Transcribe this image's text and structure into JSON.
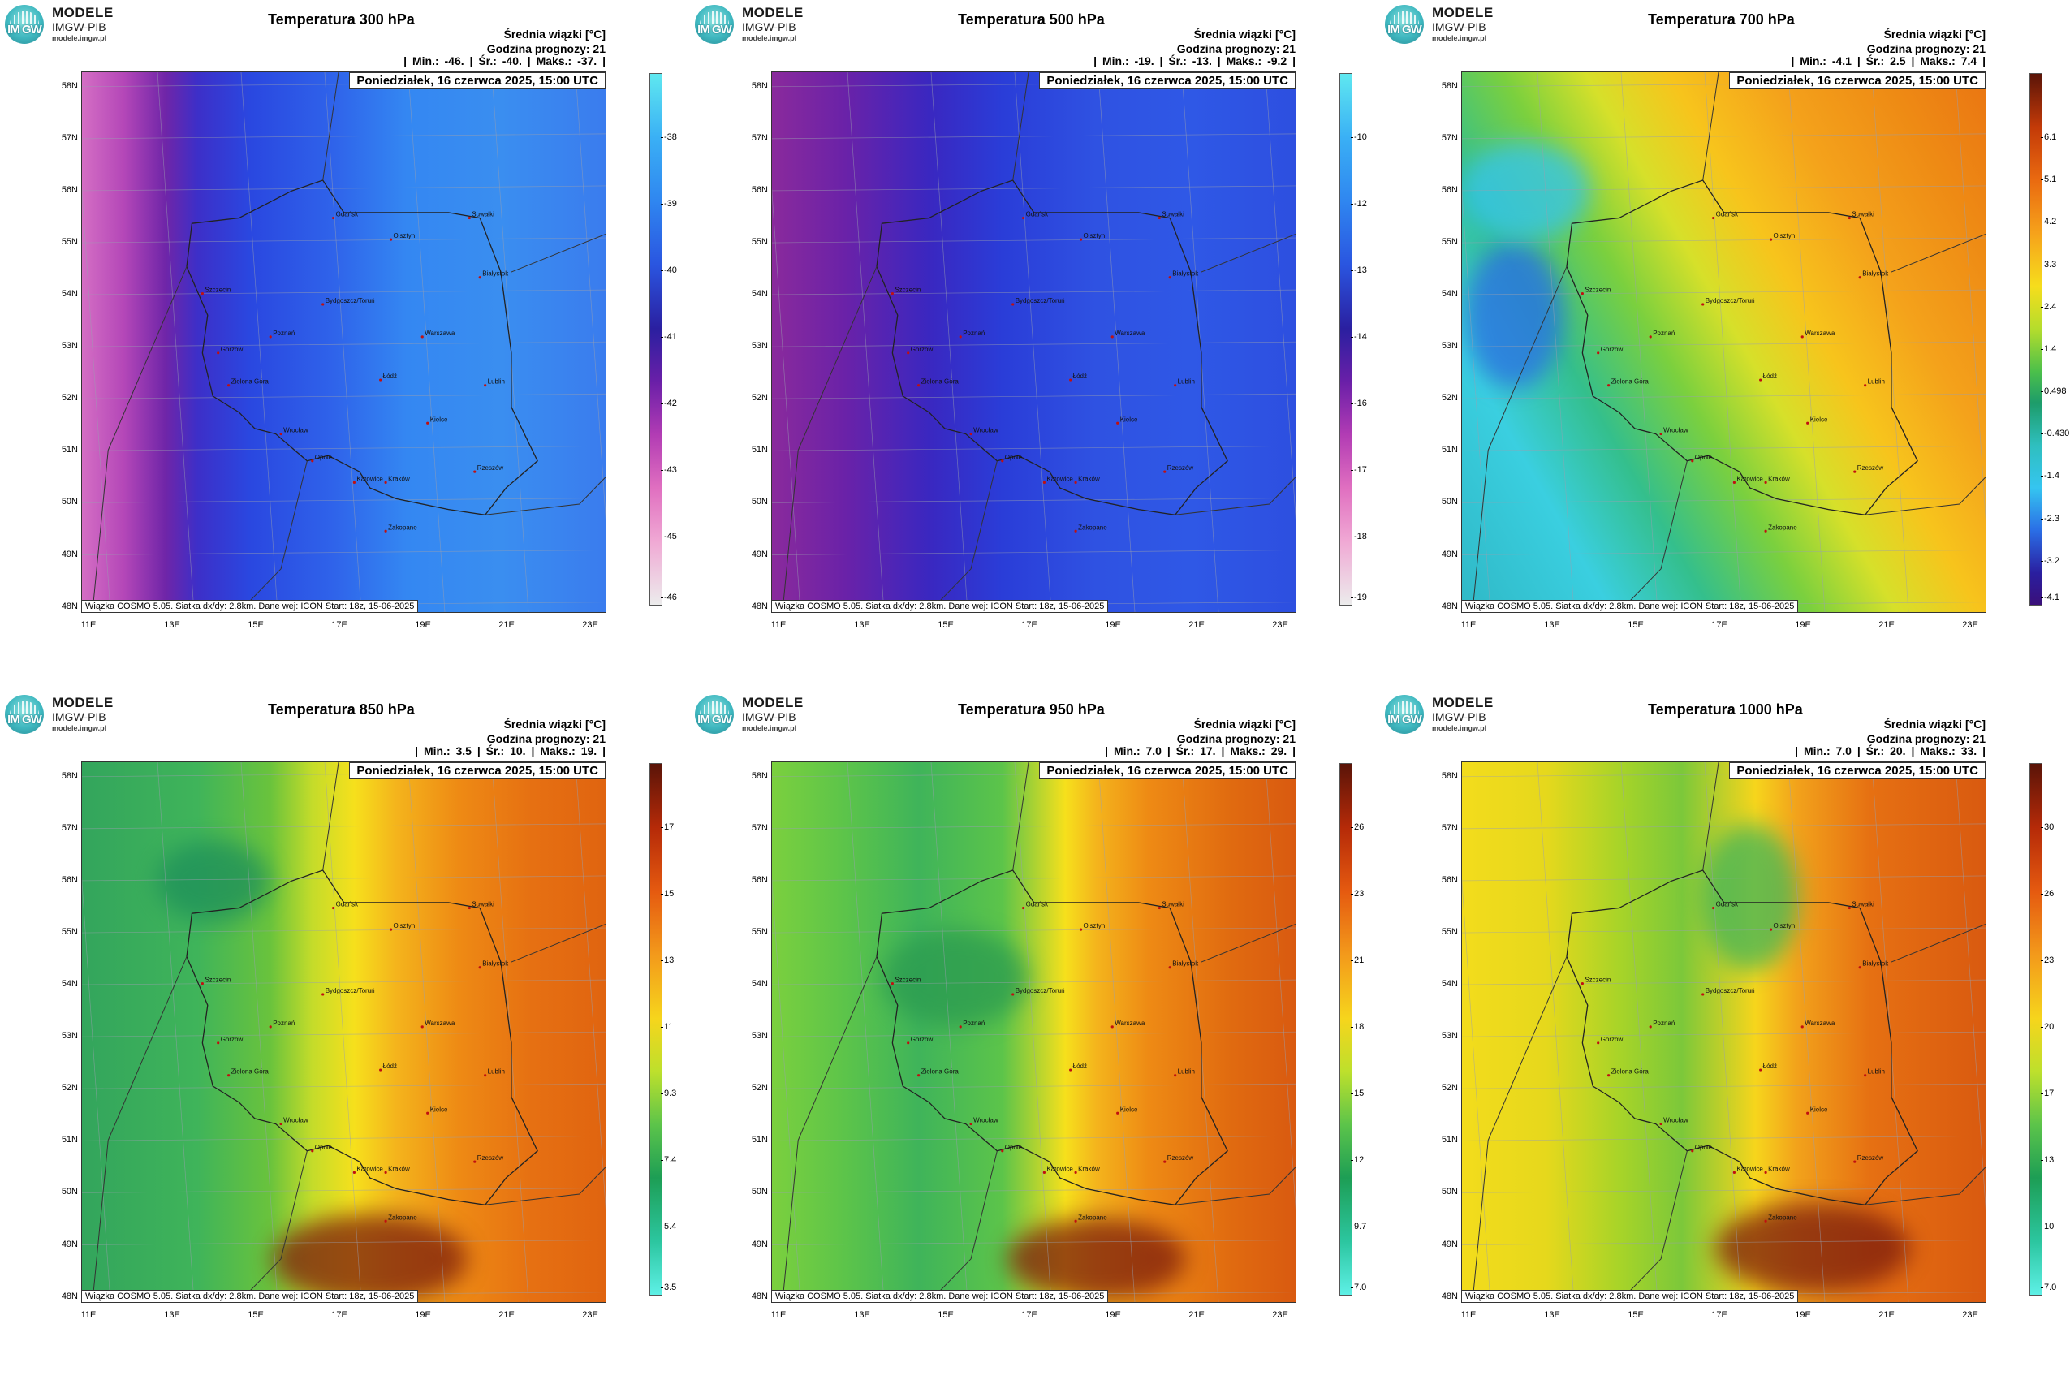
{
  "logo": {
    "mark": "IM GW",
    "line1": "MODELE",
    "line2": "IMGW-PIB",
    "line3": "modele.imgw.pl"
  },
  "common": {
    "avg_label": "Średnia wiązki [°C]",
    "forecast_hour": "Godzina prognozy: 21",
    "date": "Poniedziałek, 16 czerwca 2025, 15:00 UTC",
    "footer": "Wiązka COSMO 5.05. Siatka dx/dy: 2.8km. Dane wej: ICON Start: 18z, 15-06-2025",
    "lat_labels": [
      "58N",
      "57N",
      "56N",
      "55N",
      "54N",
      "53N",
      "52N",
      "51N",
      "50N",
      "49N",
      "48N"
    ],
    "lon_labels": [
      "11E",
      "13E",
      "15E",
      "17E",
      "19E",
      "21E",
      "23E"
    ],
    "cities": [
      "Gdańsk",
      "Olsztyn",
      "Suwałki",
      "Białystok",
      "Szczecin",
      "Bydgoszcz/Toruń",
      "Gorzów",
      "Poznań",
      "Warszawa",
      "Zielona Góra",
      "Łódź",
      "Lublin",
      "Wrocław",
      "Kielce",
      "Opole",
      "Rzeszów",
      "Katowice",
      "Kraków",
      "Zakopane"
    ]
  },
  "panels": [
    {
      "title": "Temperatura 300 hPa",
      "stats": "| Min.:   -46. | Śr.:   -40. | Maks.:   -37. |",
      "colorbar_ticks": [
        "-38",
        "-39",
        "-40",
        "-41",
        "-42",
        "-43",
        "-45",
        "-46"
      ],
      "colorbar": "cold_blue_pink",
      "field": "p300"
    },
    {
      "title": "Temperatura 500 hPa",
      "stats": "| Min.:   -19. | Śr.:   -13. | Maks.:   -9.2 |",
      "colorbar_ticks": [
        "-10",
        "-12",
        "-13",
        "-14",
        "-16",
        "-17",
        "-18",
        "-19"
      ],
      "colorbar": "cold_blue_pink",
      "field": "p500"
    },
    {
      "title": "Temperatura 700 hPa",
      "stats": "| Min.:   -4.1 | Śr.:   2.5 | Maks.:   7.4 |",
      "colorbar_ticks": [
        "6.1",
        "5.1",
        "4.2",
        "3.3",
        "2.4",
        "1.4",
        "0.498",
        "-0.430",
        "-1.4",
        "-2.3",
        "-3.2",
        "-4.1"
      ],
      "colorbar": "warm_rainbow",
      "field": "p700"
    },
    {
      "title": "Temperatura 850 hPa",
      "stats": "| Min.:   3.5 | Śr.:   10. | Maks.:   19. |",
      "colorbar_ticks": [
        "17",
        "15",
        "13",
        "11",
        "9.3",
        "7.4",
        "5.4",
        "3.5"
      ],
      "colorbar": "warm_green",
      "field": "p850"
    },
    {
      "title": "Temperatura 950 hPa",
      "stats": "| Min.:   7.0 | Śr.:   17. | Maks.:   29. |",
      "colorbar_ticks": [
        "26",
        "23",
        "21",
        "18",
        "15",
        "12",
        "9.7",
        "7.0"
      ],
      "colorbar": "warm_green",
      "field": "p950"
    },
    {
      "title": "Temperatura 1000 hPa",
      "stats": "| Min.:   7.0 | Śr.:   20. | Maks.:   33. |",
      "colorbar_ticks": [
        "30",
        "26",
        "23",
        "20",
        "17",
        "13",
        "10",
        "7.0"
      ],
      "colorbar": "warm_green",
      "field": "p1000"
    }
  ]
}
